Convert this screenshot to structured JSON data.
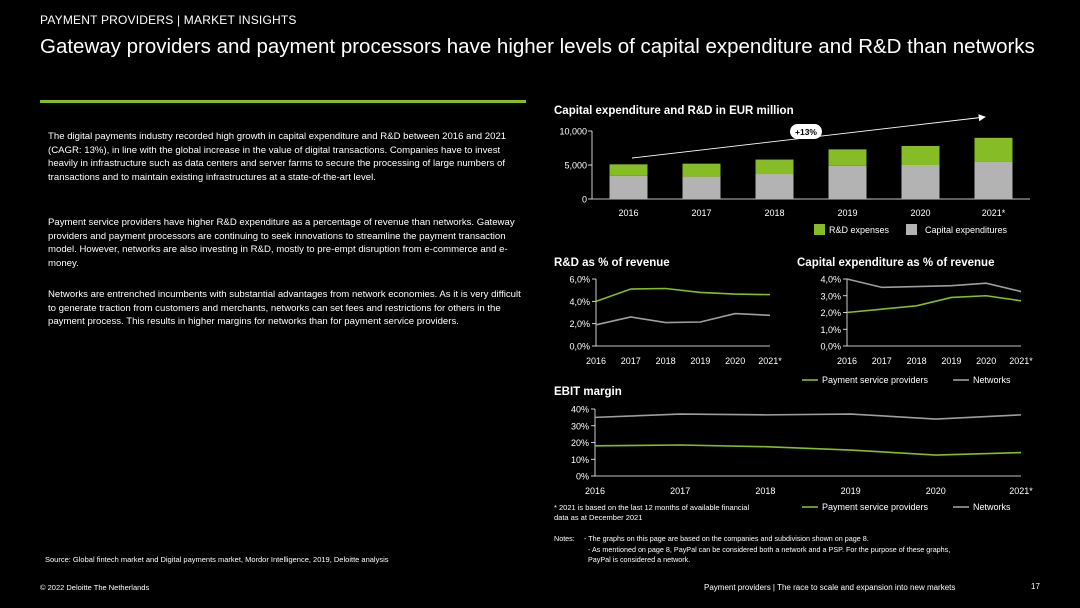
{
  "header": {
    "kicker": "PAYMENT PROVIDERS | MARKET INSIGHTS",
    "title": "Gateway providers and payment processors have higher levels of capital expenditure and R&D than networks"
  },
  "body": {
    "paragraphs": [
      "The digital payments industry recorded high growth in capital expenditure and R&D between 2016 and 2021 (CAGR: 13%), in line with the global increase in the value of digital transactions. Companies have to invest heavily in infrastructure such as data centers and server farms to secure the processing of large numbers of transactions and to maintain existing infrastructures at a state-of-the-art level.",
      "Payment service providers have higher R&D expenditure as a percentage of revenue than networks. Gateway providers and payment processors are continuing to seek innovations to streamline the payment transaction model. However, networks are also investing in R&D, mostly to pre-empt disruption from e-commerce and e-money.",
      "Networks are entrenched incumbents with substantial advantages from network economies. As it is very difficult to generate traction from customers and merchants, networks can set fees and restrictions for others in the payment process. This results in higher margins for networks than for payment service providers."
    ],
    "source": "Source: Global fintech market and Digital payments market, Mordor Intelligence, 2019, Deloitte analysis"
  },
  "colors": {
    "accent_green": "#86bc25",
    "gray_bar": "#b3b3b3",
    "networks_line": "#9e9e9e"
  },
  "chart_data": [
    {
      "type": "bar",
      "stacked": true,
      "title": "Capital expenditure and R&D in EUR million",
      "categories": [
        "2016",
        "2017",
        "2018",
        "2019",
        "2020",
        "2021*"
      ],
      "series": [
        {
          "name": "Capital expenditures",
          "values": [
            3400,
            3300,
            3800,
            4900,
            5000,
            5500
          ],
          "color": "#b3b3b3"
        },
        {
          "name": "R&D expenses",
          "values": [
            1700,
            1900,
            2000,
            2400,
            2800,
            3500
          ],
          "color": "#86bc25"
        }
      ],
      "yticks": [
        "10,000",
        "5,000",
        "0"
      ],
      "ylim": [
        0,
        10000
      ],
      "annotation": "+13%",
      "legend": [
        "R&D expenses",
        "Capital expenditures"
      ]
    },
    {
      "type": "line",
      "title": "R&D as % of revenue",
      "categories": [
        "2016",
        "2017",
        "2018",
        "2019",
        "2020",
        "2021*"
      ],
      "series": [
        {
          "name": "Payment service providers",
          "values": [
            4.0,
            5.1,
            5.15,
            4.8,
            4.65,
            4.6
          ],
          "color": "#86bc25"
        },
        {
          "name": "Networks",
          "values": [
            1.9,
            2.6,
            2.1,
            2.15,
            2.9,
            2.75
          ],
          "color": "#9e9e9e"
        }
      ],
      "yticks": [
        "6,0%",
        "4,0%",
        "2,0%",
        "0,0%"
      ],
      "ylim": [
        0,
        6
      ]
    },
    {
      "type": "line",
      "title": "Capital expenditure as % of revenue",
      "categories": [
        "2016",
        "2017",
        "2018",
        "2019",
        "2020",
        "2021*"
      ],
      "series": [
        {
          "name": "Payment service providers",
          "values": [
            2.0,
            2.2,
            2.4,
            2.9,
            3.0,
            2.7
          ],
          "color": "#86bc25"
        },
        {
          "name": "Networks",
          "values": [
            4.0,
            3.5,
            3.55,
            3.6,
            3.75,
            3.25
          ],
          "color": "#9e9e9e"
        }
      ],
      "yticks": [
        "4,0%",
        "3,0%",
        "2,0%",
        "1,0%",
        "0,0%"
      ],
      "ylim": [
        0,
        4
      ],
      "legend": [
        "Payment service providers",
        "Networks"
      ]
    },
    {
      "type": "line",
      "title": "EBIT margin",
      "categories": [
        "2016",
        "2017",
        "2018",
        "2019",
        "2020",
        "2021*"
      ],
      "series": [
        {
          "name": "Payment service providers",
          "values": [
            18,
            18.5,
            17.5,
            15.5,
            12.5,
            14
          ],
          "color": "#86bc25"
        },
        {
          "name": "Networks",
          "values": [
            35,
            37,
            36.5,
            37,
            34,
            36.5
          ],
          "color": "#9e9e9e"
        }
      ],
      "yticks": [
        "40%",
        "30%",
        "20%",
        "10%",
        "0%"
      ],
      "ylim": [
        0,
        40
      ],
      "legend": [
        "Payment service providers",
        "Networks"
      ]
    }
  ],
  "footnote": {
    "line1": "* 2021 is based on the last 12 months of available financial",
    "line2": "data as at December 2021"
  },
  "notes": {
    "label": "Notes:",
    "line1": "- The graphs on this page are based on the companies and subdivision shown on page 8.",
    "line2": "- As mentioned on page 8, PayPal can be considered both a network and a PSP. For the purpose of these graphs,",
    "line3": "PayPal is considered a network."
  },
  "footer": {
    "copyright": "© 2022 Deloitte The Netherlands",
    "text": "Payment providers | The race to scale and expansion into new markets",
    "page": "17"
  }
}
